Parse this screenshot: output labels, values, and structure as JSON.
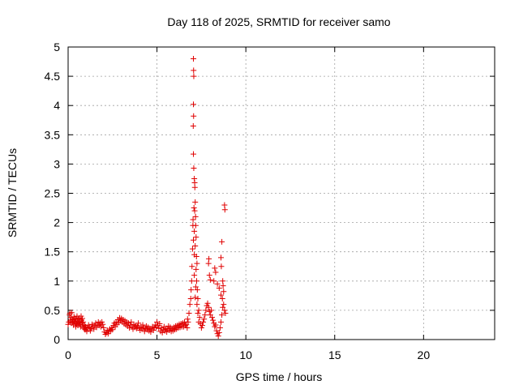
{
  "chart_data": {
    "type": "scatter",
    "title": "Day 118 of 2025, SRMTID for receiver samo",
    "xlabel": "GPS time / hours",
    "ylabel": "SRMTID / TECUs",
    "xlim": [
      0,
      24
    ],
    "ylim": [
      0,
      5
    ],
    "x_ticks": [
      0,
      5,
      10,
      15,
      20
    ],
    "x_tick_labels": [
      "0",
      "5",
      "10",
      "15",
      "20"
    ],
    "y_ticks": [
      0,
      0.5,
      1,
      1.5,
      2,
      2.5,
      3,
      3.5,
      4,
      4.5,
      5
    ],
    "y_tick_labels": [
      "0",
      "0.5",
      "1",
      "1.5",
      "2",
      "2.5",
      "3",
      "3.5",
      "4",
      "4.5",
      "5"
    ],
    "grid": true,
    "marker": "+",
    "color": "#e00000",
    "series": [
      {
        "points": [
          [
            0.0,
            0.26
          ],
          [
            0.04,
            0.3
          ],
          [
            0.08,
            0.42
          ],
          [
            0.1,
            0.45
          ],
          [
            0.12,
            0.32
          ],
          [
            0.15,
            0.38
          ],
          [
            0.18,
            0.28
          ],
          [
            0.2,
            0.46
          ],
          [
            0.23,
            0.35
          ],
          [
            0.25,
            0.3
          ],
          [
            0.28,
            0.34
          ],
          [
            0.3,
            0.25
          ],
          [
            0.33,
            0.39
          ],
          [
            0.35,
            0.31
          ],
          [
            0.38,
            0.28
          ],
          [
            0.4,
            0.36
          ],
          [
            0.43,
            0.22
          ],
          [
            0.45,
            0.33
          ],
          [
            0.48,
            0.27
          ],
          [
            0.5,
            0.4
          ],
          [
            0.53,
            0.3
          ],
          [
            0.55,
            0.24
          ],
          [
            0.58,
            0.35
          ],
          [
            0.6,
            0.29
          ],
          [
            0.63,
            0.37
          ],
          [
            0.65,
            0.26
          ],
          [
            0.68,
            0.31
          ],
          [
            0.7,
            0.22
          ],
          [
            0.73,
            0.4
          ],
          [
            0.75,
            0.33
          ],
          [
            0.78,
            0.28
          ],
          [
            0.8,
            0.36
          ],
          [
            0.83,
            0.25
          ],
          [
            0.85,
            0.3
          ],
          [
            0.88,
            0.21
          ],
          [
            0.9,
            0.19
          ],
          [
            0.93,
            0.24
          ],
          [
            0.95,
            0.17
          ],
          [
            0.98,
            0.22
          ],
          [
            1.0,
            0.18
          ],
          [
            1.05,
            0.14
          ],
          [
            1.1,
            0.2
          ],
          [
            1.15,
            0.25
          ],
          [
            1.2,
            0.21
          ],
          [
            1.25,
            0.15
          ],
          [
            1.3,
            0.19
          ],
          [
            1.35,
            0.26
          ],
          [
            1.4,
            0.22
          ],
          [
            1.45,
            0.18
          ],
          [
            1.5,
            0.24
          ],
          [
            1.55,
            0.28
          ],
          [
            1.6,
            0.21
          ],
          [
            1.65,
            0.25
          ],
          [
            1.7,
            0.3
          ],
          [
            1.75,
            0.24
          ],
          [
            1.8,
            0.28
          ],
          [
            1.85,
            0.22
          ],
          [
            1.9,
            0.3
          ],
          [
            1.95,
            0.26
          ],
          [
            2.0,
            0.2
          ],
          [
            2.05,
            0.13
          ],
          [
            2.1,
            0.09
          ],
          [
            2.15,
            0.12
          ],
          [
            2.2,
            0.16
          ],
          [
            2.25,
            0.1
          ],
          [
            2.3,
            0.14
          ],
          [
            2.35,
            0.18
          ],
          [
            2.4,
            0.15
          ],
          [
            2.45,
            0.2
          ],
          [
            2.5,
            0.17
          ],
          [
            2.55,
            0.24
          ],
          [
            2.6,
            0.28
          ],
          [
            2.65,
            0.22
          ],
          [
            2.7,
            0.3
          ],
          [
            2.75,
            0.26
          ],
          [
            2.8,
            0.34
          ],
          [
            2.85,
            0.29
          ],
          [
            2.9,
            0.37
          ],
          [
            2.95,
            0.32
          ],
          [
            3.0,
            0.36
          ],
          [
            3.05,
            0.3
          ],
          [
            3.1,
            0.34
          ],
          [
            3.15,
            0.27
          ],
          [
            3.2,
            0.32
          ],
          [
            3.25,
            0.25
          ],
          [
            3.3,
            0.3
          ],
          [
            3.35,
            0.23
          ],
          [
            3.4,
            0.28
          ],
          [
            3.45,
            0.2
          ],
          [
            3.5,
            0.25
          ],
          [
            3.55,
            0.3
          ],
          [
            3.6,
            0.22
          ],
          [
            3.65,
            0.18
          ],
          [
            3.7,
            0.26
          ],
          [
            3.75,
            0.21
          ],
          [
            3.8,
            0.24
          ],
          [
            3.85,
            0.19
          ],
          [
            3.9,
            0.22
          ],
          [
            3.95,
            0.28
          ],
          [
            4.0,
            0.2
          ],
          [
            4.05,
            0.16
          ],
          [
            4.1,
            0.22
          ],
          [
            4.15,
            0.18
          ],
          [
            4.2,
            0.25
          ],
          [
            4.25,
            0.2
          ],
          [
            4.3,
            0.14
          ],
          [
            4.35,
            0.19
          ],
          [
            4.4,
            0.23
          ],
          [
            4.45,
            0.17
          ],
          [
            4.5,
            0.21
          ],
          [
            4.55,
            0.15
          ],
          [
            4.6,
            0.19
          ],
          [
            4.65,
            0.13
          ],
          [
            4.7,
            0.18
          ],
          [
            4.75,
            0.22
          ],
          [
            4.8,
            0.16
          ],
          [
            4.85,
            0.2
          ],
          [
            4.9,
            0.25
          ],
          [
            4.95,
            0.21
          ],
          [
            5.0,
            0.3
          ],
          [
            5.05,
            0.24
          ],
          [
            5.1,
            0.19
          ],
          [
            5.15,
            0.27
          ],
          [
            5.2,
            0.14
          ],
          [
            5.25,
            0.2
          ],
          [
            5.3,
            0.12
          ],
          [
            5.35,
            0.17
          ],
          [
            5.4,
            0.22
          ],
          [
            5.45,
            0.15
          ],
          [
            5.5,
            0.19
          ],
          [
            5.55,
            0.13
          ],
          [
            5.6,
            0.18
          ],
          [
            5.65,
            0.23
          ],
          [
            5.7,
            0.16
          ],
          [
            5.75,
            0.21
          ],
          [
            5.8,
            0.14
          ],
          [
            5.85,
            0.19
          ],
          [
            5.9,
            0.15
          ],
          [
            5.95,
            0.21
          ],
          [
            6.0,
            0.17
          ],
          [
            6.05,
            0.23
          ],
          [
            6.1,
            0.18
          ],
          [
            6.15,
            0.24
          ],
          [
            6.2,
            0.2
          ],
          [
            6.25,
            0.26
          ],
          [
            6.3,
            0.21
          ],
          [
            6.35,
            0.27
          ],
          [
            6.4,
            0.22
          ],
          [
            6.45,
            0.28
          ],
          [
            6.5,
            0.22
          ],
          [
            6.55,
            0.3
          ],
          [
            6.6,
            0.24
          ],
          [
            6.65,
            0.26
          ],
          [
            6.7,
            0.2
          ],
          [
            6.72,
            0.35
          ],
          [
            6.75,
            0.3
          ],
          [
            6.8,
            0.45
          ],
          [
            6.85,
            0.6
          ],
          [
            6.9,
            0.7
          ],
          [
            6.92,
            0.85
          ],
          [
            6.95,
            1.0
          ],
          [
            6.97,
            1.25
          ],
          [
            7.0,
            1.55
          ],
          [
            7.02,
            1.95
          ],
          [
            7.03,
            2.05
          ],
          [
            7.05,
            4.8
          ],
          [
            7.06,
            4.6
          ],
          [
            7.07,
            4.5
          ],
          [
            7.05,
            4.02
          ],
          [
            7.06,
            3.82
          ],
          [
            7.04,
            3.65
          ],
          [
            7.05,
            3.17
          ],
          [
            7.07,
            2.93
          ],
          [
            7.1,
            2.75
          ],
          [
            7.12,
            2.68
          ],
          [
            7.13,
            2.6
          ],
          [
            7.12,
            2.2
          ],
          [
            7.08,
            2.25
          ],
          [
            7.15,
            2.35
          ],
          [
            7.17,
            2.1
          ],
          [
            7.18,
            1.95
          ],
          [
            7.1,
            1.85
          ],
          [
            7.05,
            1.7
          ],
          [
            7.2,
            1.75
          ],
          [
            7.15,
            1.6
          ],
          [
            7.1,
            1.45
          ],
          [
            7.22,
            1.42
          ],
          [
            7.25,
            1.3
          ],
          [
            7.2,
            1.2
          ],
          [
            7.1,
            1.1
          ],
          [
            7.23,
            1.0
          ],
          [
            7.18,
            0.9
          ],
          [
            7.27,
            0.85
          ],
          [
            7.15,
            0.72
          ],
          [
            7.3,
            0.7
          ],
          [
            7.25,
            0.6
          ],
          [
            7.35,
            0.5
          ],
          [
            7.3,
            0.45
          ],
          [
            7.4,
            0.38
          ],
          [
            7.35,
            0.3
          ],
          [
            7.45,
            0.27
          ],
          [
            7.5,
            0.2
          ],
          [
            7.55,
            0.24
          ],
          [
            7.6,
            0.3
          ],
          [
            7.65,
            0.35
          ],
          [
            7.7,
            0.42
          ],
          [
            7.75,
            0.5
          ],
          [
            7.8,
            0.58
          ],
          [
            7.85,
            0.62
          ],
          [
            7.9,
            0.55
          ],
          [
            7.95,
            0.48
          ],
          [
            8.0,
            0.42
          ],
          [
            8.05,
            0.5
          ],
          [
            8.1,
            0.38
          ],
          [
            8.15,
            0.33
          ],
          [
            8.2,
            0.28
          ],
          [
            8.25,
            0.22
          ],
          [
            8.3,
            0.25
          ],
          [
            8.35,
            0.15
          ],
          [
            8.4,
            0.1
          ],
          [
            8.45,
            0.06
          ],
          [
            8.5,
            0.12
          ],
          [
            8.55,
            0.2
          ],
          [
            8.6,
            0.3
          ],
          [
            8.65,
            0.42
          ],
          [
            8.7,
            0.55
          ],
          [
            8.75,
            0.6
          ],
          [
            8.8,
            0.5
          ],
          [
            7.9,
            1.3
          ],
          [
            7.92,
            1.38
          ],
          [
            7.95,
            1.1
          ],
          [
            8.0,
            1.02
          ],
          [
            8.2,
            1.0
          ],
          [
            8.25,
            1.22
          ],
          [
            8.3,
            1.15
          ],
          [
            8.4,
            0.95
          ],
          [
            8.5,
            0.88
          ],
          [
            8.6,
            0.76
          ],
          [
            8.6,
            1.4
          ],
          [
            8.62,
            1.25
          ],
          [
            8.65,
            1.67
          ],
          [
            8.7,
            1.0
          ],
          [
            8.72,
            0.92
          ],
          [
            8.75,
            0.82
          ],
          [
            8.68,
            0.7
          ],
          [
            8.8,
            2.3
          ],
          [
            8.82,
            2.22
          ],
          [
            8.85,
            0.45
          ]
        ]
      }
    ]
  }
}
